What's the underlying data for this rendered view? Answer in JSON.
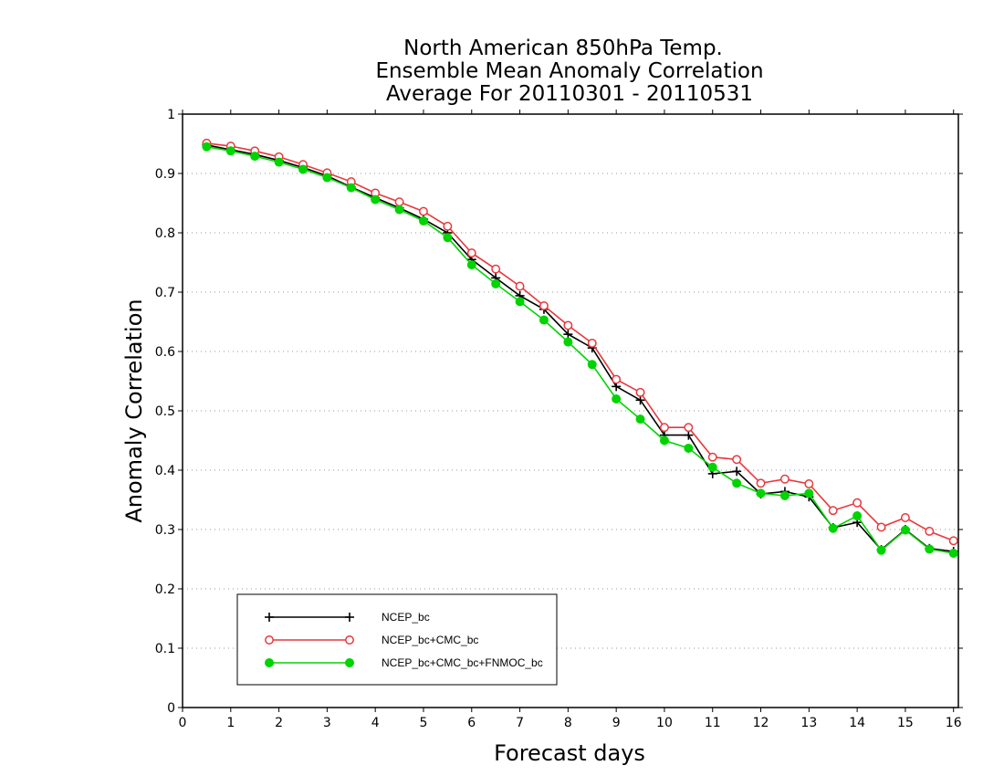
{
  "chart_data": {
    "type": "line",
    "title": [
      "North American 850hPa Temp.",
      "Ensemble Mean Anomaly Correlation",
      "Average For 20110301 - 20110531"
    ],
    "xlabel": "Forecast days",
    "ylabel": "Anomaly Correlation",
    "xlim": [
      0,
      16.1
    ],
    "ylim": [
      0,
      1
    ],
    "xticks": [
      0,
      1,
      2,
      3,
      4,
      5,
      6,
      7,
      8,
      9,
      10,
      11,
      12,
      13,
      14,
      15,
      16
    ],
    "yticks": [
      0,
      0.1,
      0.2,
      0.3,
      0.4,
      0.5,
      0.6,
      0.7,
      0.8,
      0.9,
      1
    ],
    "grid": "horizontal dotted",
    "legend_position": "lower-left",
    "x": [
      0.5,
      1,
      1.5,
      2,
      2.5,
      3,
      3.5,
      4,
      4.5,
      5,
      5.5,
      6,
      6.5,
      7,
      7.5,
      8,
      8.5,
      9,
      9.5,
      10,
      10.5,
      11,
      11.5,
      12,
      12.5,
      13,
      13.5,
      14,
      14.5,
      15,
      15.5,
      16
    ],
    "series": [
      {
        "name": "NCEP_bc",
        "color": "#000000",
        "marker": "plus",
        "values": [
          0.948,
          0.94,
          0.932,
          0.922,
          0.91,
          0.896,
          0.877,
          0.859,
          0.842,
          0.823,
          0.8,
          0.755,
          0.724,
          0.694,
          0.671,
          0.629,
          0.606,
          0.541,
          0.518,
          0.459,
          0.459,
          0.394,
          0.398,
          0.36,
          0.364,
          0.355,
          0.303,
          0.312,
          0.266,
          0.3,
          0.268,
          0.263
        ]
      },
      {
        "name": "NCEP_bc+CMC_bc",
        "color": "#e8383d",
        "marker": "open-circle",
        "values": [
          0.951,
          0.946,
          0.938,
          0.928,
          0.915,
          0.901,
          0.886,
          0.867,
          0.852,
          0.836,
          0.811,
          0.766,
          0.739,
          0.71,
          0.677,
          0.644,
          0.614,
          0.553,
          0.531,
          0.472,
          0.472,
          0.422,
          0.418,
          0.378,
          0.385,
          0.377,
          0.332,
          0.345,
          0.304,
          0.32,
          0.297,
          0.281
        ]
      },
      {
        "name": "NCEP_bc+CMC_bc+FNMOC_bc",
        "color": "#00d400",
        "marker": "filled-circle",
        "values": [
          0.945,
          0.938,
          0.929,
          0.919,
          0.907,
          0.893,
          0.876,
          0.856,
          0.839,
          0.82,
          0.792,
          0.746,
          0.714,
          0.684,
          0.653,
          0.616,
          0.578,
          0.52,
          0.486,
          0.45,
          0.437,
          0.405,
          0.378,
          0.361,
          0.357,
          0.361,
          0.302,
          0.323,
          0.265,
          0.299,
          0.267,
          0.26
        ]
      }
    ]
  }
}
